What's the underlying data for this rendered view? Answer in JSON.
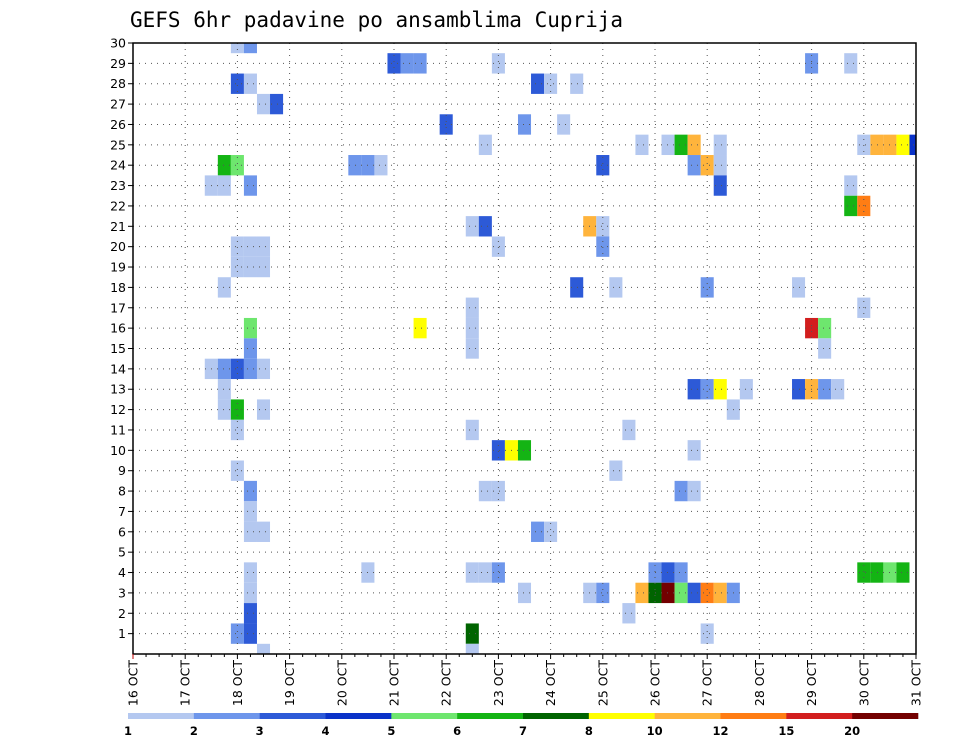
{
  "chart_data": {
    "type": "heatmap",
    "title": "GEFS 6hr padavine po ansamblima Cuprija",
    "x_axis": {
      "labels": [
        "16 OCT",
        "17 OCT",
        "18 OCT",
        "19 OCT",
        "20 OCT",
        "21 OCT",
        "22 OCT",
        "23 OCT",
        "24 OCT",
        "25 OCT",
        "26 OCT",
        "27 OCT",
        "28 OCT",
        "29 OCT",
        "30 OCT",
        "31 OCT"
      ],
      "unit": "6-hour steps",
      "range": [
        0,
        60
      ]
    },
    "y_axis": {
      "labels": [
        "1",
        "2",
        "3",
        "4",
        "5",
        "6",
        "7",
        "8",
        "9",
        "10",
        "11",
        "12",
        "13",
        "14",
        "15",
        "16",
        "17",
        "18",
        "19",
        "20",
        "21",
        "22",
        "23",
        "24",
        "25",
        "26",
        "27",
        "28",
        "29",
        "30"
      ],
      "range": [
        0,
        30
      ]
    },
    "grid": true,
    "legend": {
      "position": "bottom",
      "thresholds": [
        "1",
        "2",
        "3",
        "4",
        "5",
        "6",
        "7",
        "8",
        "10",
        "12",
        "15",
        "20"
      ],
      "colors": [
        "#b4c8f0",
        "#6e96eb",
        "#2d5ad7",
        "#0a32c8",
        "#6ee66e",
        "#14b414",
        "#006400",
        "#ffff00",
        "#ffb43c",
        "#ff7d14",
        "#d21e1e",
        "#730000"
      ]
    },
    "cells": [
      [
        8,
        30,
        1
      ],
      [
        9,
        30,
        2
      ],
      [
        20,
        29,
        3
      ],
      [
        21,
        29,
        2
      ],
      [
        22,
        29,
        2
      ],
      [
        28,
        29,
        1
      ],
      [
        52,
        29,
        2
      ],
      [
        55,
        29,
        1
      ],
      [
        8,
        28,
        3
      ],
      [
        9,
        28,
        1
      ],
      [
        31,
        28,
        3
      ],
      [
        32,
        28,
        1
      ],
      [
        34,
        28,
        1
      ],
      [
        10,
        27,
        1
      ],
      [
        11,
        27,
        3
      ],
      [
        24,
        26,
        3
      ],
      [
        30,
        26,
        2
      ],
      [
        33,
        26,
        1
      ],
      [
        27,
        25,
        1
      ],
      [
        39,
        25,
        1
      ],
      [
        41,
        25,
        1
      ],
      [
        42,
        25,
        6
      ],
      [
        43,
        25,
        9
      ],
      [
        45,
        25,
        1
      ],
      [
        56,
        25,
        1
      ],
      [
        57,
        25,
        9
      ],
      [
        58,
        25,
        9
      ],
      [
        59,
        25,
        8
      ],
      [
        60,
        25,
        4
      ],
      [
        7,
        24,
        6
      ],
      [
        8,
        24,
        5
      ],
      [
        17,
        24,
        2
      ],
      [
        18,
        24,
        2
      ],
      [
        19,
        24,
        1
      ],
      [
        36,
        24,
        3
      ],
      [
        43,
        24,
        2
      ],
      [
        44,
        24,
        9
      ],
      [
        45,
        24,
        1
      ],
      [
        6,
        23,
        1
      ],
      [
        7,
        23,
        1
      ],
      [
        9,
        23,
        2
      ],
      [
        45,
        23,
        3
      ],
      [
        55,
        23,
        1
      ],
      [
        55,
        22,
        6
      ],
      [
        56,
        22,
        10
      ],
      [
        26,
        21,
        1
      ],
      [
        27,
        21,
        3
      ],
      [
        35,
        21,
        9
      ],
      [
        36,
        21,
        1
      ],
      [
        8,
        20,
        1
      ],
      [
        9,
        20,
        1
      ],
      [
        10,
        20,
        1
      ],
      [
        28,
        20,
        1
      ],
      [
        36,
        20,
        2
      ],
      [
        8,
        19,
        1
      ],
      [
        9,
        19,
        1
      ],
      [
        10,
        19,
        1
      ],
      [
        7,
        18,
        1
      ],
      [
        34,
        18,
        3
      ],
      [
        37,
        18,
        1
      ],
      [
        44,
        18,
        2
      ],
      [
        51,
        18,
        1
      ],
      [
        26,
        17,
        1
      ],
      [
        56,
        17,
        1
      ],
      [
        9,
        16,
        5
      ],
      [
        22,
        16,
        8
      ],
      [
        26,
        16,
        1
      ],
      [
        52,
        16,
        11
      ],
      [
        53,
        16,
        5
      ],
      [
        9,
        15,
        2
      ],
      [
        26,
        15,
        1
      ],
      [
        53,
        15,
        1
      ],
      [
        6,
        14,
        1
      ],
      [
        7,
        14,
        2
      ],
      [
        8,
        14,
        3
      ],
      [
        9,
        14,
        2
      ],
      [
        10,
        14,
        1
      ],
      [
        7,
        13,
        1
      ],
      [
        43,
        13,
        3
      ],
      [
        44,
        13,
        2
      ],
      [
        45,
        13,
        8
      ],
      [
        47,
        13,
        1
      ],
      [
        51,
        13,
        3
      ],
      [
        52,
        13,
        9
      ],
      [
        53,
        13,
        2
      ],
      [
        54,
        13,
        1
      ],
      [
        7,
        12,
        1
      ],
      [
        8,
        12,
        6
      ],
      [
        10,
        12,
        1
      ],
      [
        46,
        12,
        1
      ],
      [
        8,
        11,
        1
      ],
      [
        26,
        11,
        1
      ],
      [
        38,
        11,
        1
      ],
      [
        28,
        10,
        3
      ],
      [
        29,
        10,
        8
      ],
      [
        30,
        10,
        6
      ],
      [
        43,
        10,
        1
      ],
      [
        8,
        9,
        1
      ],
      [
        37,
        9,
        1
      ],
      [
        9,
        8,
        2
      ],
      [
        27,
        8,
        1
      ],
      [
        28,
        8,
        1
      ],
      [
        42,
        8,
        2
      ],
      [
        43,
        8,
        1
      ],
      [
        9,
        7,
        1
      ],
      [
        9,
        6,
        1
      ],
      [
        10,
        6,
        1
      ],
      [
        31,
        6,
        2
      ],
      [
        32,
        6,
        1
      ],
      [
        9,
        4,
        1
      ],
      [
        18,
        4,
        1
      ],
      [
        26,
        4,
        1
      ],
      [
        27,
        4,
        1
      ],
      [
        28,
        4,
        2
      ],
      [
        40,
        4,
        2
      ],
      [
        41,
        4,
        3
      ],
      [
        42,
        4,
        2
      ],
      [
        56,
        4,
        6
      ],
      [
        57,
        4,
        6
      ],
      [
        58,
        4,
        5
      ],
      [
        59,
        4,
        6
      ],
      [
        9,
        3,
        1
      ],
      [
        30,
        3,
        1
      ],
      [
        35,
        3,
        1
      ],
      [
        36,
        3,
        2
      ],
      [
        39,
        3,
        9
      ],
      [
        40,
        3,
        7
      ],
      [
        41,
        3,
        12
      ],
      [
        42,
        3,
        5
      ],
      [
        43,
        3,
        3
      ],
      [
        44,
        3,
        10
      ],
      [
        45,
        3,
        9
      ],
      [
        46,
        3,
        2
      ],
      [
        9,
        2,
        3
      ],
      [
        38,
        2,
        1
      ],
      [
        8,
        1,
        2
      ],
      [
        9,
        1,
        3
      ],
      [
        26,
        1,
        7
      ],
      [
        44,
        1,
        1
      ],
      [
        10,
        0,
        1
      ],
      [
        26,
        0,
        1
      ]
    ]
  }
}
